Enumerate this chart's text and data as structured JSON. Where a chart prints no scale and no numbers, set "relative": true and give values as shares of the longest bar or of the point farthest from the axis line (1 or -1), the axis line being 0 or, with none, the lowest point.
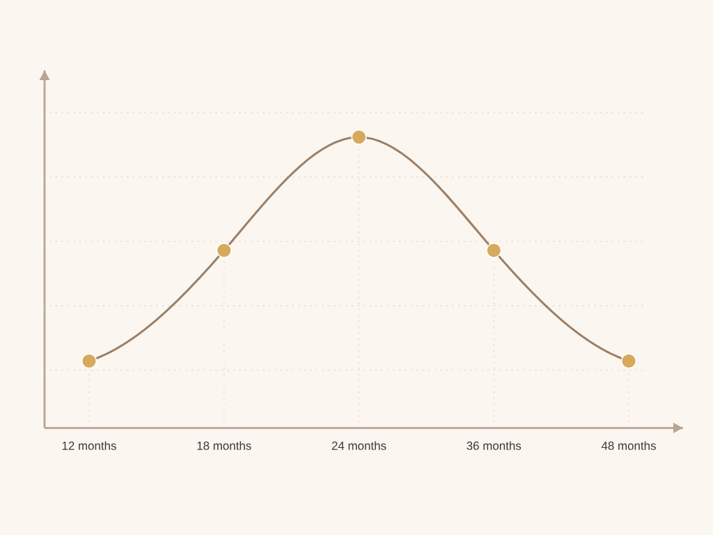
{
  "chart_data": {
    "type": "line",
    "relative": true,
    "categories": [
      "12 months",
      "18 months",
      "24 months",
      "36 months",
      "48 months"
    ],
    "series": [
      {
        "color": "#9a7f68",
        "marker": "none",
        "line_style": "solid",
        "values": [
          0.23,
          0.61,
          1,
          0.61,
          0.23
        ]
      },
      {
        "type": "scatter",
        "color": "#d6aa5c",
        "marker": "circle",
        "values": [
          0.23,
          0.61,
          1,
          0.61,
          0.23
        ]
      }
    ],
    "grid": true
  }
}
